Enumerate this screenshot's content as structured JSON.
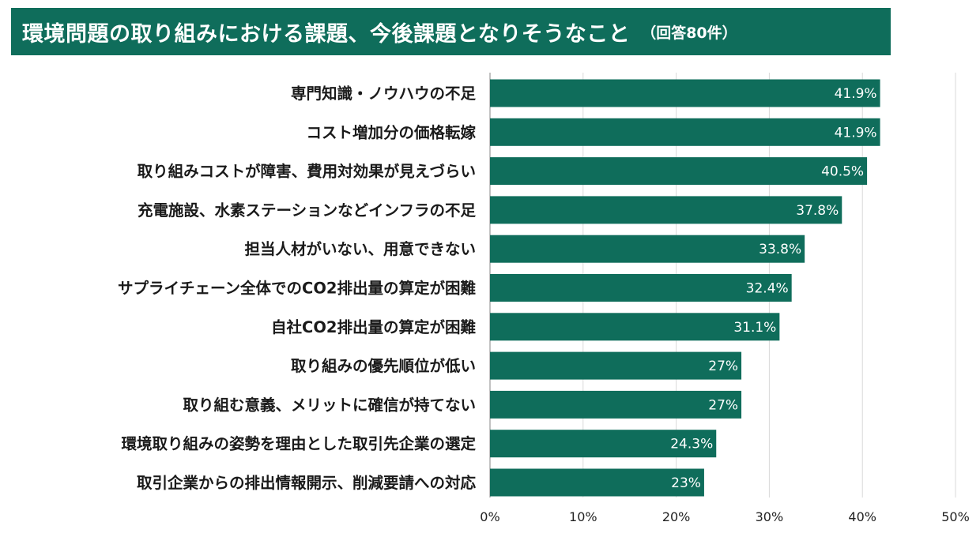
{
  "header": {
    "title": "環境問題の取り組みにおける課題、今後課題となりそうなこと",
    "subtitle": "（回答80件）"
  },
  "colors": {
    "bar": "#0f6d5b",
    "title_background": "#0f6d5b",
    "grid": "#d9d9d9",
    "axis": "#999999"
  },
  "chart_data": {
    "type": "bar",
    "orientation": "horizontal",
    "title": "環境問題の取り組みにおける課題、今後課題となりそうなこと（回答80件）",
    "categories": [
      "専門知識・ノウハウの不足",
      "コスト増加分の価格転嫁",
      "取り組みコストが障害、費用対効果が見えづらい",
      "充電施設、水素ステーションなどインフラの不足",
      "担当人材がいない、用意できない",
      "サプライチェーン全体でのCO2排出量の算定が困難",
      "自社CO2排出量の算定が困難",
      "取り組みの優先順位が低い",
      "取り組む意義、メリットに確信が持てない",
      "環境取り組みの姿勢を理由とした取引先企業の選定",
      "取引企業からの排出情報開示、削減要請への対応"
    ],
    "values": [
      41.9,
      41.9,
      40.5,
      37.8,
      33.8,
      32.4,
      31.1,
      27,
      27,
      24.3,
      23
    ],
    "value_labels": [
      "41.9%",
      "41.9%",
      "40.5%",
      "37.8%",
      "33.8%",
      "32.4%",
      "31.1%",
      "27%",
      "27%",
      "24.3%",
      "23%"
    ],
    "xlim": [
      0,
      50
    ],
    "xticks": [
      0,
      10,
      20,
      30,
      40,
      50
    ],
    "xtick_labels": [
      "0%",
      "10%",
      "20%",
      "30%",
      "40%",
      "50%"
    ],
    "xlabel": "",
    "ylabel": "",
    "grid": true,
    "legend": false
  }
}
